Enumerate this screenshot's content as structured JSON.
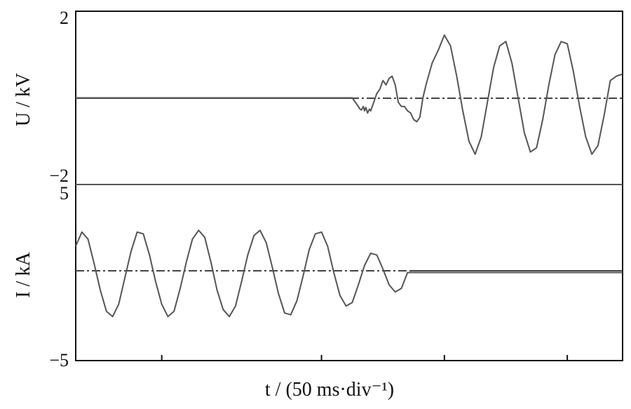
{
  "chart_data": {
    "type": "line",
    "xlabel": "t / (50 ms·div⁻¹)",
    "x_unit": "div",
    "xlim": [
      0,
      8.9
    ],
    "x_ticks": [
      1.4,
      4.0,
      6.0,
      8.0
    ],
    "panels": [
      {
        "id": "voltage",
        "ylabel": "U / kV",
        "ylim": [
          -2,
          2
        ],
        "y_tick_labels": [
          "2",
          "−2"
        ],
        "series": [
          {
            "quantity": "U",
            "color": "#555555",
            "x": [
              0.0,
              4.5,
              4.55,
              4.6,
              4.62,
              4.65,
              4.68,
              4.7,
              4.72,
              4.75,
              4.78,
              4.8,
              4.85,
              4.9,
              4.95,
              5.0,
              5.05,
              5.1,
              5.15,
              5.2,
              5.25,
              5.3,
              5.35,
              5.4,
              5.45,
              5.5,
              5.55,
              5.6,
              5.65,
              5.7,
              5.8,
              5.9,
              6.0,
              6.1,
              6.2,
              6.3,
              6.4,
              6.5,
              6.6,
              6.7,
              6.8,
              6.9,
              7.0,
              7.1,
              7.2,
              7.3,
              7.4,
              7.5,
              7.6,
              7.7,
              7.8,
              7.9,
              8.0,
              8.1,
              8.2,
              8.3,
              8.4,
              8.5,
              8.6,
              8.7,
              8.8,
              8.9
            ],
            "y": [
              0.0,
              0.0,
              -0.1,
              -0.2,
              -0.25,
              -0.28,
              -0.2,
              -0.3,
              -0.22,
              -0.35,
              -0.26,
              -0.3,
              -0.1,
              0.1,
              0.2,
              0.4,
              0.3,
              0.45,
              0.5,
              0.3,
              -0.1,
              -0.2,
              -0.2,
              -0.3,
              -0.35,
              -0.5,
              -0.55,
              -0.45,
              0.0,
              0.3,
              0.8,
              1.1,
              1.45,
              1.2,
              0.5,
              -0.3,
              -1.0,
              -1.3,
              -0.9,
              -0.1,
              0.7,
              1.2,
              1.3,
              0.8,
              0.0,
              -0.8,
              -1.25,
              -1.15,
              -0.5,
              0.3,
              1.0,
              1.3,
              1.25,
              0.6,
              -0.2,
              -0.9,
              -1.3,
              -1.1,
              -0.4,
              0.4,
              0.5,
              0.55
            ]
          }
        ]
      },
      {
        "id": "current",
        "ylabel": "I / kA",
        "ylim": [
          -5,
          5
        ],
        "y_tick_labels": [
          "5",
          "−5"
        ],
        "series": [
          {
            "quantity": "I",
            "color": "#555555",
            "x": [
              0.0,
              0.1,
              0.2,
              0.3,
              0.4,
              0.5,
              0.6,
              0.7,
              0.8,
              0.9,
              1.0,
              1.1,
              1.2,
              1.3,
              1.4,
              1.5,
              1.6,
              1.7,
              1.8,
              1.9,
              2.0,
              2.1,
              2.2,
              2.3,
              2.4,
              2.5,
              2.6,
              2.7,
              2.8,
              2.9,
              3.0,
              3.1,
              3.2,
              3.3,
              3.4,
              3.5,
              3.6,
              3.7,
              3.8,
              3.9,
              4.0,
              4.1,
              4.2,
              4.3,
              4.4,
              4.5,
              4.6,
              4.7,
              4.8,
              4.9,
              5.0,
              5.1,
              5.2,
              5.3,
              5.4,
              8.9
            ],
            "y": [
              1.5,
              2.3,
              1.9,
              0.5,
              -1.0,
              -2.2,
              -2.5,
              -1.8,
              -0.3,
              1.2,
              2.3,
              2.2,
              1.0,
              -0.5,
              -1.8,
              -2.5,
              -2.2,
              -0.9,
              0.6,
              1.9,
              2.4,
              2.0,
              0.6,
              -1.0,
              -2.1,
              -2.5,
              -1.9,
              -0.5,
              1.0,
              2.1,
              2.4,
              1.7,
              0.3,
              -1.2,
              -2.3,
              -2.4,
              -1.6,
              -0.2,
              1.3,
              2.2,
              2.3,
              1.5,
              0.0,
              -1.3,
              -1.9,
              -1.7,
              -0.7,
              0.4,
              1.1,
              1.0,
              0.2,
              -0.7,
              -1.1,
              -0.9,
              0.0,
              0.0
            ]
          }
        ]
      }
    ]
  }
}
